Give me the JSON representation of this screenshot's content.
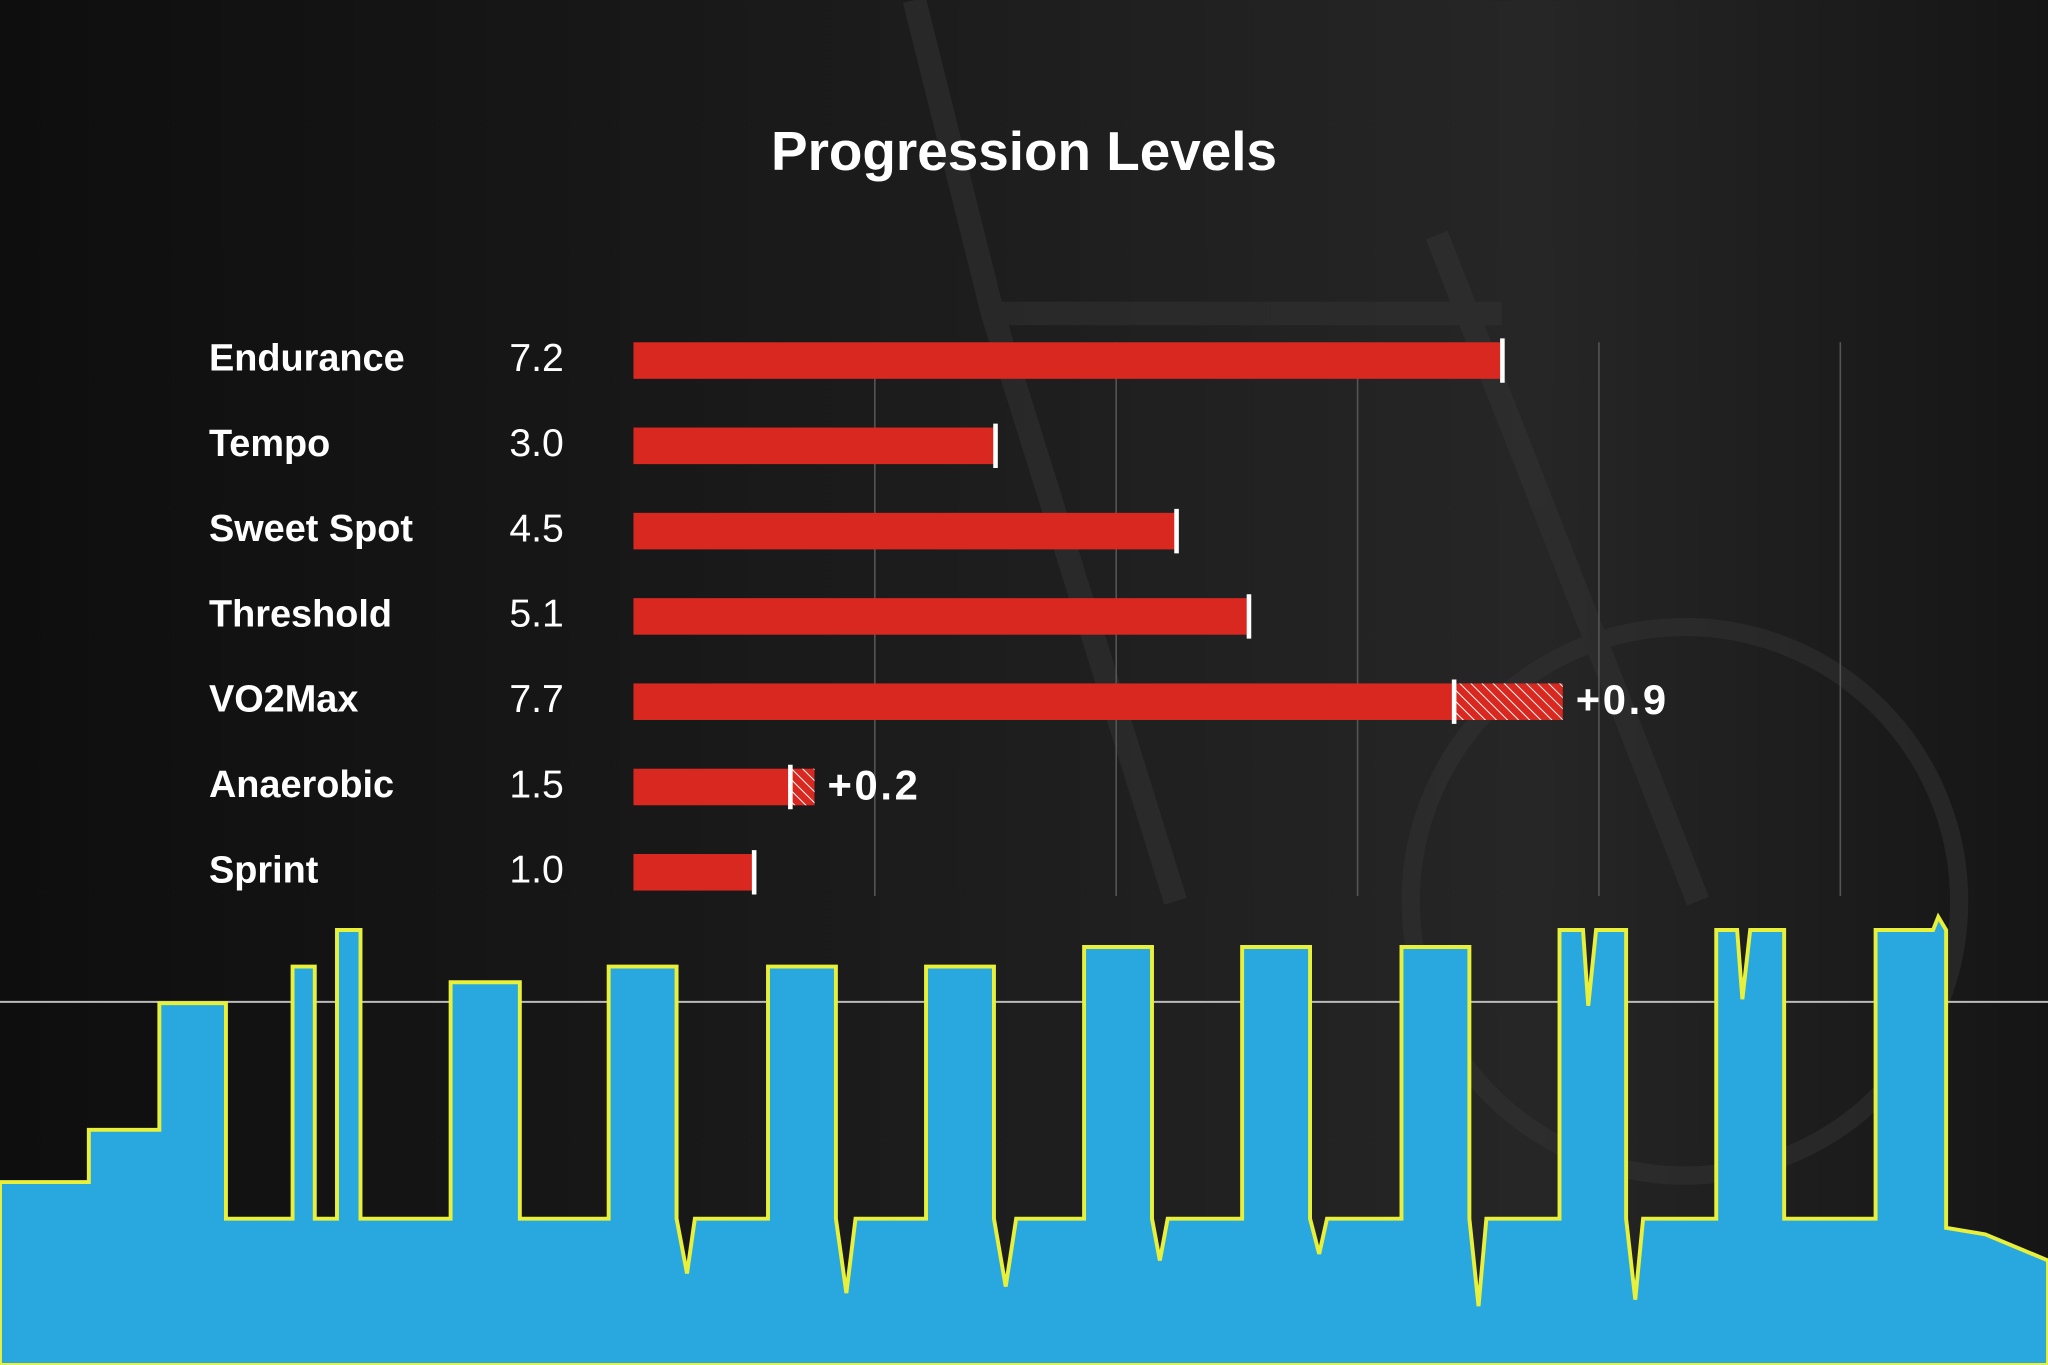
{
  "chart_data": {
    "type": "bar",
    "orientation": "horizontal",
    "title": "Progression Levels",
    "categories": [
      "Endurance",
      "Tempo",
      "Sweet Spot",
      "Threshold",
      "VO2Max",
      "Anaerobic",
      "Sprint"
    ],
    "values": [
      7.2,
      3.0,
      4.5,
      5.1,
      7.7,
      1.5,
      1.0
    ],
    "value_labels": [
      "7.2",
      "3.0",
      "4.5",
      "5.1",
      "7.7",
      "1.5",
      "1.0"
    ],
    "increments": [
      null,
      null,
      null,
      null,
      0.9,
      0.2,
      null
    ],
    "increment_labels": [
      null,
      null,
      null,
      null,
      "+0.9",
      "+0.2",
      null
    ],
    "color": "#d8281f",
    "xlim": [
      0,
      10
    ],
    "xticks": [
      2,
      4,
      6,
      8,
      10
    ],
    "grid": true
  }
}
